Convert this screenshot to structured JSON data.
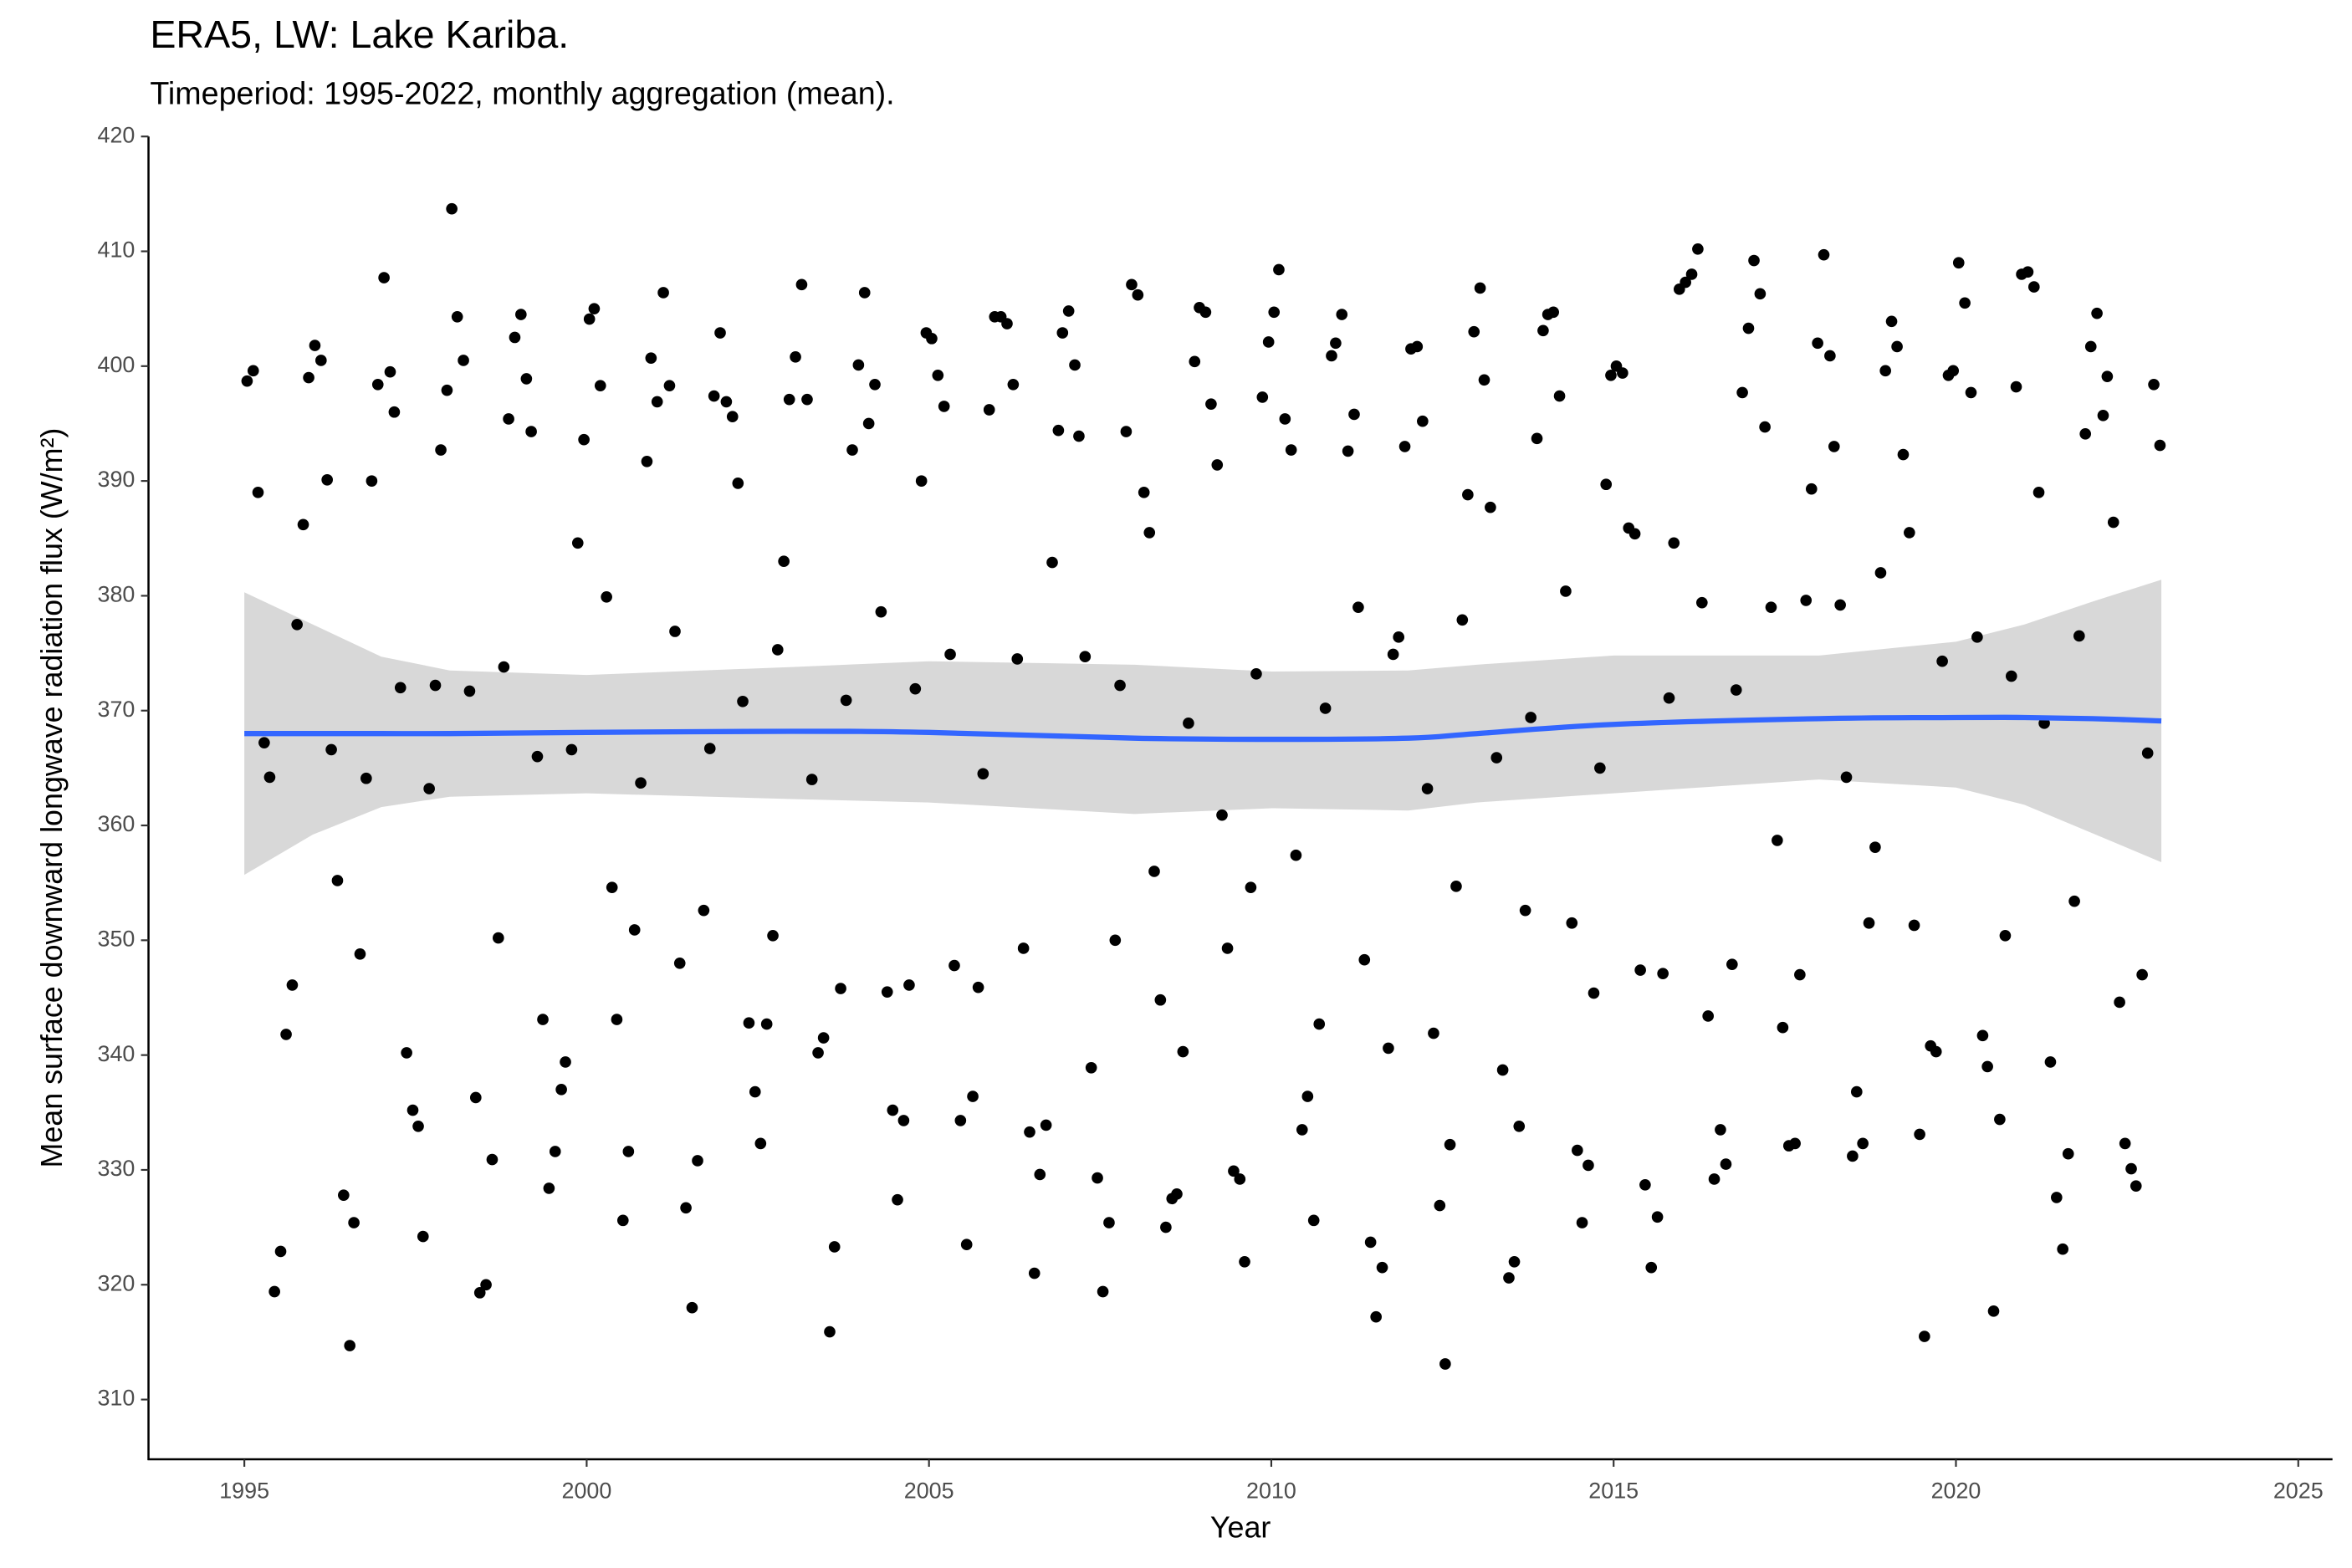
{
  "chart_data": {
    "type": "scatter",
    "title": "ERA5, LW: Lake Kariba.",
    "subtitle": "Timeperiod: 1995-2022, monthly aggregation (mean).",
    "x_label": "Year",
    "y_label": "Mean surface downward longwave radiation flux (W/m²)",
    "xlim": [
      1993.6,
      2025.5
    ],
    "ylim": [
      304.8,
      420
    ],
    "xticks": [
      1995,
      2000,
      2005,
      2010,
      2015,
      2020,
      2025
    ],
    "yticks": [
      310,
      320,
      330,
      340,
      350,
      360,
      370,
      380,
      390,
      400,
      410,
      420
    ],
    "color": "#000000",
    "x": [
      1995.04,
      1995.13,
      1995.2,
      1995.29,
      1995.37,
      1995.44,
      1995.53,
      1995.61,
      1995.7,
      1995.77,
      1995.86,
      1995.94,
      1996.03,
      1996.12,
      1996.21,
      1996.27,
      1996.36,
      1996.45,
      1996.54,
      1996.6,
      1996.69,
      1996.78,
      1996.86,
      1996.95,
      1997.04,
      1997.13,
      1997.19,
      1997.28,
      1997.37,
      1997.46,
      1997.54,
      1997.61,
      1997.7,
      1997.79,
      1997.87,
      1997.96,
      1998.03,
      1998.11,
      1998.2,
      1998.29,
      1998.38,
      1998.44,
      1998.53,
      1998.62,
      1998.71,
      1998.79,
      1998.86,
      1998.95,
      1999.04,
      1999.12,
      1999.19,
      1999.28,
      1999.36,
      1999.45,
      1999.54,
      1999.63,
      1999.69,
      1999.78,
      1999.87,
      1999.96,
      2000.04,
      2000.11,
      2000.2,
      2000.29,
      2000.37,
      2000.44,
      2000.53,
      2000.61,
      2000.7,
      2000.79,
      2000.88,
      2000.94,
      2001.03,
      2001.12,
      2001.21,
      2001.29,
      2001.36,
      2001.45,
      2001.54,
      2001.62,
      2001.71,
      2001.8,
      2001.86,
      2001.95,
      2002.04,
      2002.13,
      2002.21,
      2002.28,
      2002.37,
      2002.46,
      2002.54,
      2002.63,
      2002.72,
      2002.79,
      2002.88,
      2002.96,
      2003.05,
      2003.14,
      2003.22,
      2003.29,
      2003.38,
      2003.46,
      2003.55,
      2003.62,
      2003.71,
      2003.79,
      2003.88,
      2003.97,
      2004.06,
      2004.12,
      2004.21,
      2004.3,
      2004.39,
      2004.47,
      2004.54,
      2004.63,
      2004.71,
      2004.8,
      2004.89,
      2004.96,
      2005.04,
      2005.13,
      2005.22,
      2005.31,
      2005.37,
      2005.46,
      2005.55,
      2005.64,
      2005.72,
      2005.79,
      2005.88,
      2005.96,
      2006.05,
      2006.14,
      2006.23,
      2006.29,
      2006.38,
      2006.47,
      2006.54,
      2006.62,
      2006.71,
      2006.8,
      2006.89,
      2006.95,
      2007.04,
      2007.13,
      2007.19,
      2007.28,
      2007.37,
      2007.46,
      2007.54,
      2007.63,
      2007.72,
      2007.79,
      2007.88,
      2007.96,
      2008.05,
      2008.14,
      2008.22,
      2008.29,
      2008.38,
      2008.46,
      2008.55,
      2008.62,
      2008.71,
      2008.79,
      2008.88,
      2008.95,
      2009.04,
      2009.12,
      2009.21,
      2009.28,
      2009.36,
      2009.45,
      2009.54,
      2009.61,
      2009.7,
      2009.78,
      2009.87,
      2009.96,
      2010.04,
      2010.11,
      2010.2,
      2010.29,
      2010.36,
      2010.45,
      2010.53,
      2010.62,
      2010.7,
      2010.79,
      2010.88,
      2010.94,
      2011.03,
      2011.12,
      2011.21,
      2011.27,
      2011.36,
      2011.45,
      2011.53,
      2011.62,
      2011.71,
      2011.78,
      2011.86,
      2011.95,
      2012.04,
      2012.13,
      2012.21,
      2012.28,
      2012.37,
      2012.46,
      2012.54,
      2012.61,
      2012.7,
      2012.79,
      2012.87,
      2012.96,
      2013.05,
      2013.11,
      2013.2,
      2013.29,
      2013.38,
      2013.47,
      2013.55,
      2013.62,
      2013.71,
      2013.79,
      2013.88,
      2013.97,
      2014.04,
      2014.12,
      2014.21,
      2014.3,
      2014.39,
      2014.47,
      2014.54,
      2014.63,
      2014.71,
      2014.8,
      2014.89,
      2014.96,
      2015.04,
      2015.13,
      2015.22,
      2015.31,
      2015.39,
      2015.46,
      2015.55,
      2015.64,
      2015.72,
      2015.81,
      2015.88,
      2015.96,
      2016.05,
      2016.14,
      2016.23,
      2016.29,
      2016.38,
      2016.47,
      2016.56,
      2016.64,
      2016.73,
      2016.79,
      2016.88,
      2016.97,
      2017.05,
      2017.14,
      2017.21,
      2017.3,
      2017.39,
      2017.47,
      2017.56,
      2017.65,
      2017.72,
      2017.81,
      2017.89,
      2017.98,
      2018.07,
      2018.16,
      2018.22,
      2018.31,
      2018.4,
      2018.49,
      2018.55,
      2018.64,
      2018.73,
      2018.82,
      2018.9,
      2018.97,
      2019.06,
      2019.14,
      2019.23,
      2019.32,
      2019.39,
      2019.47,
      2019.54,
      2019.63,
      2019.71,
      2019.8,
      2019.89,
      2019.96,
      2020.04,
      2020.13,
      2020.22,
      2020.31,
      2020.39,
      2020.46,
      2020.55,
      2020.64,
      2020.72,
      2020.81,
      2020.88,
      2020.96,
      2021.05,
      2021.14,
      2021.21,
      2021.29,
      2021.38,
      2021.47,
      2021.56,
      2021.64,
      2021.73,
      2021.8,
      2021.89,
      2021.97,
      2022.06,
      2022.15,
      2022.21,
      2022.3,
      2022.39,
      2022.47,
      2022.56,
      2022.63,
      2022.72,
      2022.8,
      2022.89,
      2022.98
    ],
    "values": [
      398.7,
      399.6,
      389.0,
      367.2,
      364.2,
      319.4,
      322.9,
      341.8,
      346.1,
      377.5,
      386.2,
      399.0,
      401.8,
      400.5,
      390.1,
      366.6,
      355.2,
      327.8,
      314.7,
      325.4,
      348.8,
      364.1,
      390.0,
      398.4,
      407.7,
      399.5,
      396.0,
      372.0,
      340.2,
      335.2,
      333.8,
      324.2,
      363.2,
      372.2,
      392.7,
      397.9,
      413.7,
      404.3,
      400.5,
      371.7,
      336.3,
      319.3,
      320.0,
      330.9,
      350.2,
      373.8,
      395.4,
      402.5,
      404.5,
      398.9,
      394.3,
      366.0,
      343.1,
      328.4,
      331.6,
      337.0,
      339.4,
      366.6,
      384.6,
      393.6,
      404.1,
      405.0,
      398.3,
      379.9,
      354.6,
      343.1,
      325.6,
      331.6,
      350.9,
      363.7,
      391.7,
      400.7,
      396.9,
      406.4,
      398.3,
      376.9,
      348.0,
      326.7,
      318.0,
      330.8,
      352.6,
      366.7,
      397.4,
      402.9,
      396.9,
      395.6,
      389.8,
      370.8,
      342.8,
      336.8,
      332.3,
      342.7,
      350.4,
      375.3,
      383.0,
      397.1,
      400.8,
      407.1,
      397.1,
      364.0,
      340.2,
      341.5,
      315.9,
      323.3,
      345.8,
      370.9,
      392.7,
      400.1,
      406.4,
      395.0,
      398.4,
      378.6,
      345.5,
      335.2,
      327.4,
      334.3,
      346.1,
      371.9,
      390.0,
      402.9,
      402.4,
      399.2,
      396.5,
      374.9,
      347.8,
      334.3,
      323.5,
      336.4,
      345.9,
      364.5,
      396.2,
      404.3,
      404.3,
      403.7,
      398.4,
      374.5,
      349.3,
      333.3,
      321.0,
      329.6,
      333.9,
      382.9,
      394.4,
      402.9,
      404.8,
      400.1,
      393.9,
      374.7,
      338.9,
      329.3,
      319.4,
      325.4,
      350.0,
      372.2,
      394.3,
      407.1,
      406.2,
      389.0,
      385.5,
      356.0,
      344.8,
      325.0,
      327.5,
      327.9,
      340.3,
      368.9,
      400.4,
      405.1,
      404.7,
      396.7,
      391.4,
      360.9,
      349.3,
      329.9,
      329.2,
      322.0,
      354.6,
      373.2,
      397.3,
      402.1,
      404.7,
      408.4,
      395.4,
      392.7,
      357.4,
      333.5,
      336.4,
      325.6,
      342.7,
      370.2,
      400.9,
      402.0,
      404.5,
      392.6,
      395.8,
      379.0,
      348.3,
      323.7,
      317.2,
      321.5,
      340.6,
      374.9,
      376.4,
      393.0,
      401.5,
      401.7,
      395.2,
      363.2,
      341.9,
      326.9,
      313.1,
      332.2,
      354.7,
      377.9,
      388.8,
      403.0,
      406.8,
      398.8,
      387.7,
      365.9,
      338.7,
      320.6,
      322.0,
      333.8,
      352.6,
      369.4,
      393.7,
      403.1,
      404.5,
      404.7,
      397.4,
      380.4,
      351.5,
      331.7,
      325.4,
      330.4,
      345.4,
      365.0,
      389.7,
      399.2,
      400.0,
      399.4,
      385.9,
      385.4,
      347.4,
      328.7,
      321.5,
      325.9,
      347.1,
      371.1,
      384.6,
      406.7,
      407.3,
      408.0,
      410.2,
      379.4,
      343.4,
      329.2,
      333.5,
      330.5,
      347.9,
      371.8,
      397.7,
      403.3,
      409.2,
      406.3,
      394.7,
      379.0,
      358.7,
      342.4,
      332.1,
      332.3,
      347.0,
      379.6,
      389.3,
      402.0,
      409.7,
      400.9,
      393.0,
      379.2,
      364.2,
      331.2,
      336.8,
      332.3,
      351.5,
      358.1,
      382.0,
      399.6,
      403.9,
      401.7,
      392.3,
      385.5,
      351.3,
      333.1,
      315.5,
      340.8,
      340.3,
      374.3,
      399.2,
      399.6,
      409.0,
      405.5,
      397.7,
      376.4,
      341.7,
      339.0,
      317.7,
      334.4,
      350.4,
      373.0,
      398.2,
      408.0,
      408.2,
      406.9,
      389.0,
      368.9,
      339.4,
      327.6,
      323.1,
      331.4,
      353.4,
      376.5,
      394.1,
      401.7,
      404.6,
      395.7,
      399.1,
      386.4,
      344.6,
      332.3,
      330.1,
      328.6,
      347.0,
      366.3,
      398.4,
      393.1
    ],
    "smooth": {
      "color": "#3366ff",
      "band_color": "#d4d4d4",
      "x": [
        1995,
        1996,
        1997,
        1998,
        2000,
        2003,
        2005,
        2008,
        2010,
        2012,
        2013,
        2015,
        2018,
        2020,
        2021,
        2022,
        2023
      ],
      "values": [
        368.0,
        368.0,
        368.0,
        368.0,
        368.1,
        368.2,
        368.1,
        367.6,
        367.5,
        367.6,
        368.0,
        368.8,
        369.3,
        369.4,
        369.4,
        369.3,
        369.1
      ],
      "upper": [
        380.3,
        377.5,
        374.7,
        373.5,
        373.1,
        373.8,
        374.3,
        374.0,
        373.4,
        373.5,
        374.0,
        374.8,
        374.8,
        376.0,
        377.5,
        379.5,
        381.4
      ],
      "lower": [
        355.7,
        359.2,
        361.6,
        362.5,
        362.8,
        362.3,
        362.0,
        361.0,
        361.5,
        361.3,
        362.0,
        362.8,
        364.0,
        363.3,
        361.8,
        359.3,
        356.8
      ]
    }
  }
}
